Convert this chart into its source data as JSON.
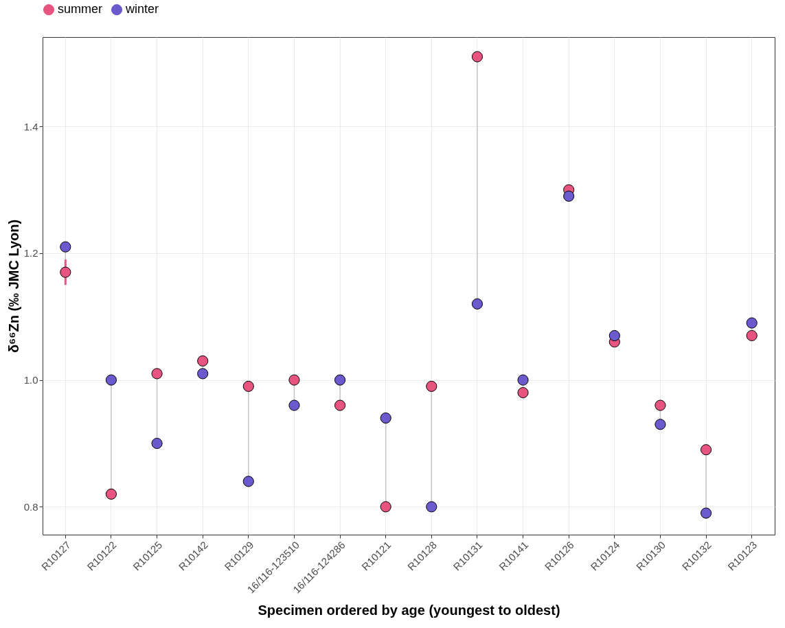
{
  "chart_data": {
    "type": "scatter",
    "xlabel": "Specimen ordered by age (youngest to oldest)",
    "ylabel": "δ⁶⁶Zn (‰ JMC Lyon)",
    "categories": [
      "R10127",
      "R10122",
      "R10125",
      "R10142",
      "R10129",
      "16/116-123510",
      "16/116-124286",
      "R10121",
      "R10128",
      "R10131",
      "R10141",
      "R10126",
      "R10124",
      "R10130",
      "R10132",
      "R10123"
    ],
    "series": [
      {
        "name": "summer",
        "color": "#e75480",
        "values": [
          1.17,
          0.82,
          1.01,
          1.03,
          0.99,
          1.0,
          0.96,
          0.8,
          0.99,
          1.51,
          0.98,
          1.3,
          1.06,
          0.96,
          0.89,
          1.07
        ],
        "errors": [
          0.02,
          null,
          null,
          null,
          null,
          null,
          null,
          null,
          null,
          null,
          null,
          null,
          null,
          null,
          null,
          null
        ]
      },
      {
        "name": "winter",
        "color": "#6a5acd",
        "values": [
          1.21,
          1.0,
          0.9,
          1.01,
          0.84,
          0.96,
          1.0,
          0.94,
          0.8,
          1.12,
          1.0,
          1.29,
          1.07,
          0.93,
          0.79,
          1.09
        ]
      }
    ],
    "ylim": [
      0.756,
      1.541
    ],
    "yticks": [
      {
        "value": 0.8,
        "label": "0.8"
      },
      {
        "value": 1,
        "label": "1.0"
      },
      {
        "value": 1.2,
        "label": "1.2"
      },
      {
        "value": 1.4,
        "label": "1.4"
      }
    ],
    "grid": true,
    "legend": "top",
    "marker": "circle"
  }
}
